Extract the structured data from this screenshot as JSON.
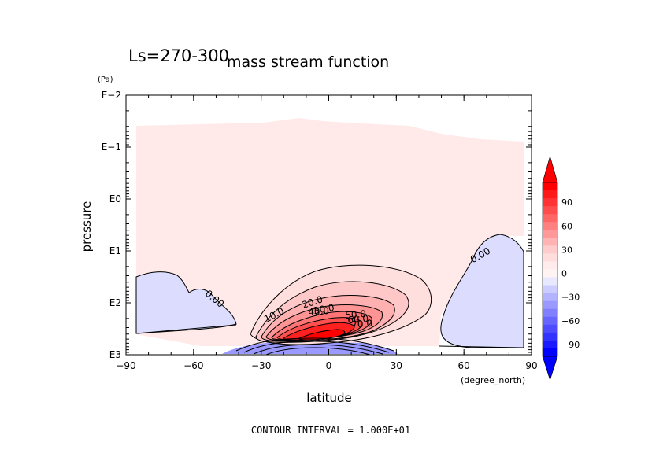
{
  "chart_data": {
    "type": "contour",
    "title_left": "Ls=270-300",
    "title": "mass stream function",
    "xlabel": "latitude",
    "x_unit": "(degree_north)",
    "ylabel": "pressure",
    "y_unit": "(Pa)",
    "footer": "CONTOUR INTERVAL = 1.000E+01",
    "xlim": [
      -90,
      90
    ],
    "x_ticks": [
      -90,
      -60,
      -30,
      0,
      30,
      60,
      90
    ],
    "x_tick_labels": [
      "−90",
      "−60",
      "−30",
      "0",
      "30",
      "60",
      "90"
    ],
    "y_scale": "log",
    "y_ticks_exponent": [
      -2,
      -1,
      0,
      1,
      2,
      3
    ],
    "y_tick_labels": [
      "E−2",
      "E−1",
      "E0",
      "E1",
      "E2",
      "E3"
    ],
    "contour_interval": 10,
    "contour_labels": [
      "10.0",
      "20.0",
      "30.0",
      "40.0",
      "50.0",
      "60.0",
      "70.0",
      "0.00",
      "0.00"
    ],
    "colorbar": {
      "tick_values": [
        90,
        60,
        30,
        0,
        -30,
        -60,
        -90
      ],
      "tick_labels": [
        "90",
        "60",
        "30",
        "0",
        "−30",
        "−60",
        "−90"
      ],
      "levels_top_to_bottom": [
        110,
        100,
        90,
        80,
        70,
        60,
        50,
        40,
        30,
        20,
        10,
        0,
        -10,
        -20,
        -30,
        -40,
        -50,
        -60,
        -70,
        -80,
        -90,
        -100
      ],
      "colors_top_to_bottom": [
        "#ff0000",
        "#ff1a1a",
        "#ff3333",
        "#ff4d4d",
        "#ff6666",
        "#ff8080",
        "#ff9999",
        "#ffb3b3",
        "#ffcccc",
        "#ffdddd",
        "#ffebeb",
        "#fff3f3",
        "#e8e8ff",
        "#ccccff",
        "#b3b3ff",
        "#9999ff",
        "#8080ff",
        "#6666ff",
        "#4d4dff",
        "#3333ff",
        "#1a1aff",
        "#0000ff"
      ]
    },
    "colors": {
      "positive": "#ff0000",
      "negative": "#0000ff",
      "zero_fill": "#ffe9e9",
      "negative_fill": "#dcdcff"
    }
  }
}
